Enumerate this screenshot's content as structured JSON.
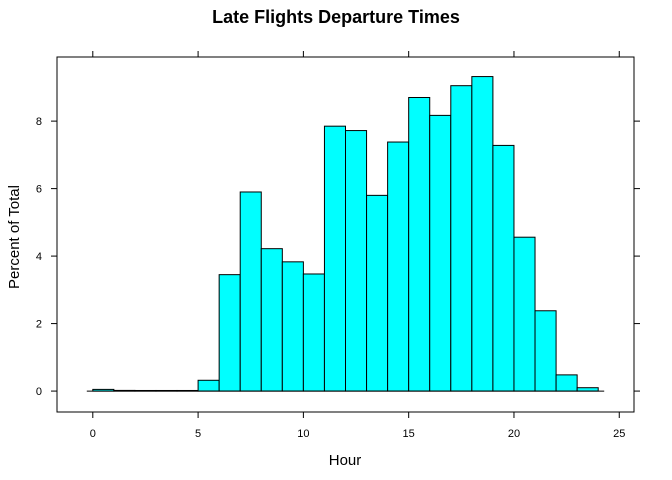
{
  "chart_data": {
    "type": "bar",
    "title": "Late Flights Departure Times",
    "xlabel": "Hour",
    "ylabel": "Percent of Total",
    "bin_width": 1,
    "bins": [
      {
        "x0": 0,
        "x1": 1,
        "value": 0.05
      },
      {
        "x0": 1,
        "x1": 2,
        "value": 0.02
      },
      {
        "x0": 2,
        "x1": 3,
        "value": 0.01
      },
      {
        "x0": 3,
        "x1": 4,
        "value": 0.01
      },
      {
        "x0": 4,
        "x1": 5,
        "value": 0.01
      },
      {
        "x0": 5,
        "x1": 6,
        "value": 0.32
      },
      {
        "x0": 6,
        "x1": 7,
        "value": 3.45
      },
      {
        "x0": 7,
        "x1": 8,
        "value": 5.9
      },
      {
        "x0": 8,
        "x1": 9,
        "value": 4.22
      },
      {
        "x0": 9,
        "x1": 10,
        "value": 3.83
      },
      {
        "x0": 10,
        "x1": 11,
        "value": 3.47
      },
      {
        "x0": 11,
        "x1": 12,
        "value": 7.85
      },
      {
        "x0": 12,
        "x1": 13,
        "value": 7.72
      },
      {
        "x0": 13,
        "x1": 14,
        "value": 5.8
      },
      {
        "x0": 14,
        "x1": 15,
        "value": 7.38
      },
      {
        "x0": 15,
        "x1": 16,
        "value": 8.7
      },
      {
        "x0": 16,
        "x1": 17,
        "value": 8.17
      },
      {
        "x0": 17,
        "x1": 18,
        "value": 9.05
      },
      {
        "x0": 18,
        "x1": 19,
        "value": 9.32
      },
      {
        "x0": 19,
        "x1": 20,
        "value": 7.28
      },
      {
        "x0": 20,
        "x1": 21,
        "value": 4.56
      },
      {
        "x0": 21,
        "x1": 22,
        "value": 2.38
      },
      {
        "x0": 22,
        "x1": 23,
        "value": 0.48
      },
      {
        "x0": 23,
        "x1": 24,
        "value": 0.1
      }
    ],
    "xlim": [
      -1.7,
      25.7
    ],
    "ylim": [
      -0.62,
      9.9
    ],
    "xticks": [
      0,
      5,
      10,
      15,
      20,
      25
    ],
    "xtick_labels": [
      "0",
      "5",
      "10",
      "15",
      "20",
      "25"
    ],
    "yticks": [
      0,
      2,
      4,
      6,
      8
    ],
    "ytick_labels": [
      "0",
      "2",
      "4",
      "6",
      "8"
    ],
    "bar_color": "#00ffff",
    "bar_edge_color": "#000000",
    "grid": false,
    "legend": "none"
  }
}
